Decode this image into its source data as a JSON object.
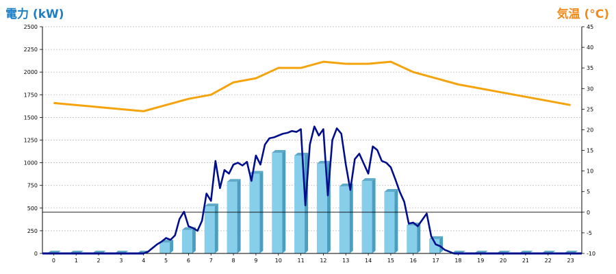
{
  "chart_data": {
    "type": "bar+line",
    "title_left": "電力 (kW)",
    "title_right": "気温 (°C)",
    "colors": {
      "left_title": "#1c7ec4",
      "right_title": "#f08a1a",
      "bars": "#87ceeb",
      "bar_side": "#4a9fc0",
      "bar_top": "#5fa9c9",
      "power_line": "#000e8c",
      "temperature_line": "#f5a30c",
      "grid": "#b4b4b4",
      "zero_line": "#000000"
    },
    "categories": [
      "0",
      "1",
      "2",
      "3",
      "4",
      "5",
      "6",
      "7",
      "8",
      "9",
      "10",
      "11",
      "12",
      "13",
      "14",
      "15",
      "16",
      "17",
      "18",
      "19",
      "20",
      "21",
      "22",
      "23"
    ],
    "y_left": {
      "min": 0,
      "max": 2500,
      "ticks": [
        "0",
        "250",
        "500",
        "750",
        "1000",
        "1250",
        "1500",
        "1750",
        "2000",
        "2250",
        "2500"
      ]
    },
    "y_right": {
      "min": -10,
      "max": 45,
      "ticks": [
        "-10",
        "-5",
        "0",
        "5",
        "10",
        "15",
        "20",
        "25",
        "30",
        "35",
        "40",
        "45"
      ]
    },
    "grid": true,
    "bars": {
      "values": [
        0,
        0,
        0,
        0,
        0,
        120,
        260,
        520,
        790,
        880,
        1110,
        1080,
        990,
        740,
        800,
        680,
        310,
        160,
        0,
        0,
        0,
        0,
        0,
        0
      ]
    },
    "power_line": {
      "x": [
        4,
        4.2,
        4.4,
        4.6,
        4.8,
        5,
        5.2,
        5.4,
        5.6,
        5.8,
        6,
        6.2,
        6.4,
        6.6,
        6.8,
        7,
        7.2,
        7.4,
        7.6,
        7.8,
        8,
        8.2,
        8.4,
        8.6,
        8.8,
        9,
        9.2,
        9.4,
        9.6,
        9.8,
        10,
        10.2,
        10.4,
        10.6,
        10.8,
        11,
        11.2,
        11.4,
        11.6,
        11.8,
        12,
        12.2,
        12.4,
        12.6,
        12.8,
        13,
        13.2,
        13.4,
        13.6,
        13.8,
        14,
        14.2,
        14.4,
        14.6,
        14.8,
        15,
        15.2,
        15.4,
        15.6,
        15.8,
        16,
        16.2,
        16.4,
        16.6,
        16.8,
        17,
        17.2,
        17.4,
        17.6,
        17.8
      ],
      "values": [
        0,
        20,
        60,
        100,
        130,
        170,
        150,
        200,
        380,
        460,
        300,
        280,
        250,
        360,
        660,
        580,
        1020,
        720,
        920,
        880,
        980,
        1000,
        970,
        1010,
        800,
        1080,
        980,
        1200,
        1270,
        1280,
        1300,
        1320,
        1330,
        1350,
        1340,
        1370,
        530,
        1200,
        1400,
        1300,
        1370,
        640,
        1250,
        1380,
        1320,
        980,
        700,
        1040,
        1100,
        990,
        880,
        1180,
        1140,
        1020,
        1000,
        950,
        820,
        680,
        570,
        330,
        340,
        300,
        370,
        440,
        190,
        100,
        80,
        40,
        20,
        0
      ]
    },
    "temperature": {
      "values": [
        26.5,
        26,
        25.5,
        25,
        24.5,
        26,
        27.5,
        28.5,
        31.5,
        32.5,
        35,
        35,
        36.5,
        36,
        36,
        36.5,
        34,
        32.5,
        31,
        30,
        29,
        28,
        27,
        26
      ]
    }
  }
}
